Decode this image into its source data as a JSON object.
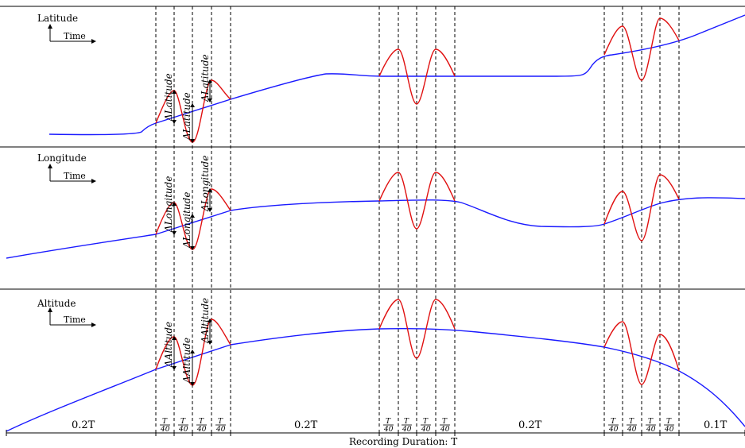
{
  "panels": [
    {
      "title": "Latitude",
      "time_label": "Time",
      "delta_label": "ΔLatitude"
    },
    {
      "title": "Longitude",
      "time_label": "Time",
      "delta_label": "ΔLongitude"
    },
    {
      "title": "Altitude",
      "time_label": "Time",
      "delta_label": "ΔAltitude"
    }
  ],
  "segments": {
    "major": [
      "0.2T",
      "0.2T",
      "0.2T",
      "0.1T"
    ],
    "fraction_numerator": "T",
    "fraction_denominator": "40"
  },
  "footer": {
    "label": "Recording Duration: T"
  },
  "colors": {
    "trajectory": "#1a1aff",
    "perturbation": "#e01010"
  }
}
